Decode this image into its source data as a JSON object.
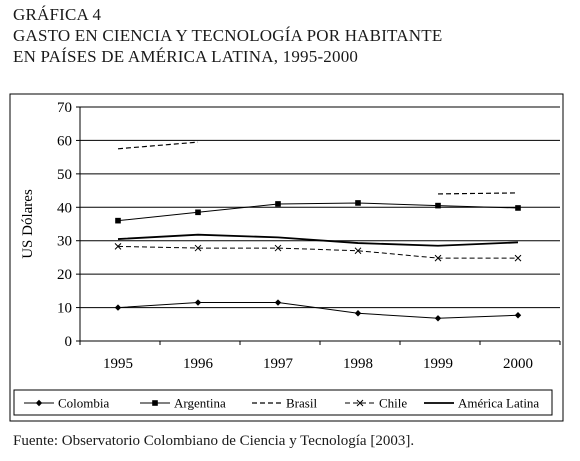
{
  "heading": {
    "line1": "GRÁFICA 4",
    "line2": "GASTO EN CIENCIA Y TECNOLOGÍA POR HABITANTE",
    "line3": "EN PAÍSES DE AMÉRICA LATINA, 1995-2000"
  },
  "source": "Fuente: Observatorio Colombiano de Ciencia y Tecnología [2003].",
  "chart_data": {
    "type": "line",
    "title": "",
    "xlabel": "",
    "ylabel": "US Dólares",
    "categories": [
      "1995",
      "1996",
      "1997",
      "1998",
      "1999",
      "2000"
    ],
    "ylim": [
      0,
      70
    ],
    "yticks": [
      "0",
      "10",
      "20",
      "30",
      "40",
      "50",
      "60",
      "70"
    ],
    "grid": true,
    "legend_position": "bottom",
    "series": [
      {
        "name": "Colombia",
        "style": "diamond",
        "values": [
          10,
          11.5,
          11.5,
          8.3,
          6.8,
          7.7
        ]
      },
      {
        "name": "Argentina",
        "style": "square",
        "values": [
          36,
          38.5,
          41,
          41.3,
          40.5,
          39.8
        ]
      },
      {
        "name": "Brasil",
        "style": "dashed",
        "values": [
          57.5,
          59.5,
          null,
          null,
          44,
          44.3
        ]
      },
      {
        "name": "Chile",
        "style": "dash-x",
        "values": [
          28.3,
          27.8,
          27.8,
          27,
          24.8,
          24.8
        ]
      },
      {
        "name": "América Latina",
        "style": "solid",
        "values": [
          30.5,
          31.8,
          31,
          29.3,
          28.5,
          29.5
        ]
      }
    ]
  }
}
